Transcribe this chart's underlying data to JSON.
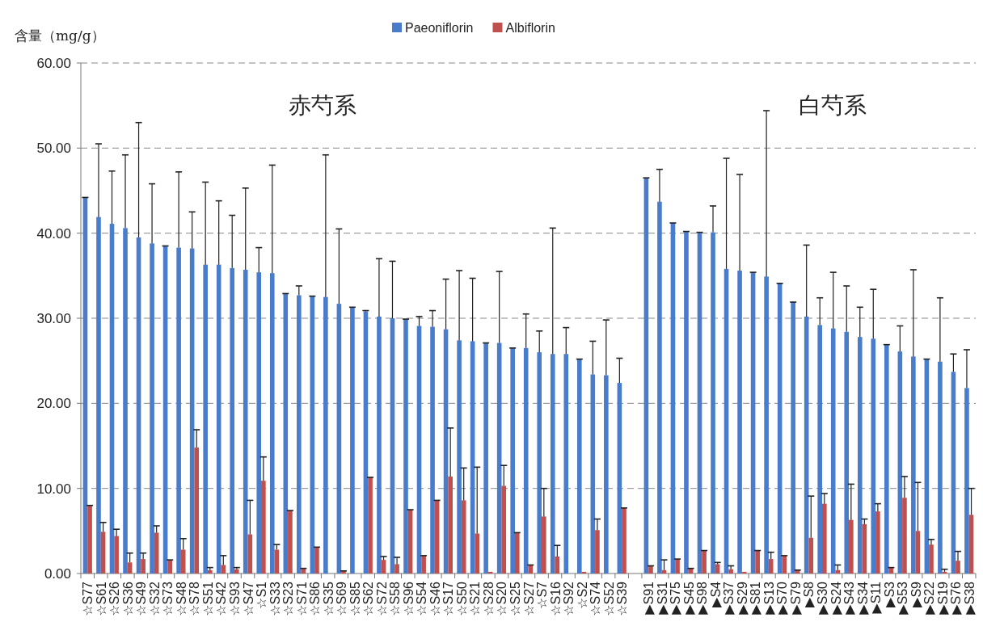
{
  "chart_data": {
    "type": "bar",
    "ylabel": "含量（mg/g）",
    "annotations": [
      "赤芍系",
      "白芍系"
    ],
    "categories": [
      "☆S77",
      "☆S61",
      "☆S26",
      "☆S36",
      "☆S49",
      "☆S32",
      "☆S73",
      "☆S48",
      "☆S78",
      "☆S51",
      "☆S42",
      "☆S93",
      "☆S47",
      "☆S1",
      "☆S33",
      "☆S23",
      "☆S71",
      "☆S86",
      "☆S35",
      "☆S69",
      "☆S85",
      "☆S62",
      "☆S72",
      "☆S58",
      "☆S96",
      "☆S54",
      "☆S46",
      "☆S17",
      "☆S50",
      "☆S21",
      "☆S28",
      "☆S20",
      "☆S25",
      "☆S27",
      "☆S7",
      "☆S16",
      "☆S92",
      "☆S2",
      "☆S74",
      "☆S52",
      "☆S39",
      null,
      "▶S91",
      "▶S31",
      "▶S75",
      "▶S45",
      "▶S98",
      "▶S4",
      "▶S37",
      "▶S29",
      "▶S81",
      "▶S13",
      "▶S70",
      "▶S79",
      "▶S8",
      "▶S30",
      "▶S24",
      "▶S43",
      "▶S34",
      "▶S11",
      "▶S3",
      "▶S53",
      "▶S9",
      "▶S22",
      "▶S19",
      "▶S76",
      "▶S38"
    ],
    "series": [
      {
        "name": "Paeoniflorin",
        "color": "#4a7ccc",
        "values": [
          44.2,
          41.9,
          41.1,
          40.6,
          39.5,
          38.8,
          38.5,
          38.3,
          38.2,
          36.3,
          36.3,
          35.9,
          35.7,
          35.4,
          35.3,
          32.9,
          32.7,
          32.6,
          32.5,
          31.7,
          31.3,
          30.8,
          30.2,
          30.0,
          29.9,
          29.1,
          29.0,
          28.7,
          27.4,
          27.3,
          27.1,
          27.1,
          26.5,
          26.5,
          26.0,
          25.8,
          25.8,
          25.2,
          23.4,
          23.3,
          22.4,
          null,
          46.5,
          43.7,
          41.2,
          40.2,
          40.1,
          40.1,
          35.8,
          35.6,
          35.4,
          34.9,
          34.1,
          31.9,
          30.2,
          29.2,
          28.8,
          28.4,
          27.8,
          27.6,
          26.9,
          26.1,
          25.5,
          25.2,
          24.9,
          23.7,
          21.8
        ],
        "errors": [
          [
            44.2,
            44.2
          ],
          [
            41.9,
            50.5
          ],
          [
            41.1,
            47.3
          ],
          [
            40.6,
            49.2
          ],
          [
            39.5,
            53.0
          ],
          [
            38.8,
            45.8
          ],
          [
            38.5,
            38.5
          ],
          [
            38.3,
            47.2
          ],
          [
            38.2,
            42.5
          ],
          [
            36.3,
            46.0
          ],
          [
            36.3,
            43.8
          ],
          [
            35.9,
            42.1
          ],
          [
            35.7,
            45.3
          ],
          [
            35.4,
            38.3
          ],
          [
            35.3,
            48.0
          ],
          [
            32.9,
            32.9
          ],
          [
            32.7,
            33.8
          ],
          [
            32.6,
            32.6
          ],
          [
            32.5,
            49.2
          ],
          [
            31.7,
            40.5
          ],
          [
            31.3,
            31.3
          ],
          [
            30.8,
            30.9
          ],
          [
            30.2,
            37.0
          ],
          [
            30.0,
            36.7
          ],
          [
            29.9,
            29.9
          ],
          [
            29.1,
            30.2
          ],
          [
            29.0,
            30.9
          ],
          [
            28.7,
            34.6
          ],
          [
            27.4,
            35.6
          ],
          [
            27.3,
            34.7
          ],
          [
            27.1,
            27.1
          ],
          [
            27.1,
            35.5
          ],
          [
            26.5,
            26.5
          ],
          [
            26.5,
            30.5
          ],
          [
            26.0,
            28.5
          ],
          [
            25.8,
            40.6
          ],
          [
            25.8,
            28.9
          ],
          [
            25.2,
            25.2
          ],
          [
            23.4,
            27.3
          ],
          [
            23.3,
            29.8
          ],
          [
            22.4,
            25.3
          ],
          null,
          [
            46.5,
            46.5
          ],
          [
            43.7,
            47.5
          ],
          [
            41.2,
            41.2
          ],
          [
            40.2,
            40.2
          ],
          [
            40.1,
            40.1
          ],
          [
            40.1,
            43.2
          ],
          [
            35.8,
            48.8
          ],
          [
            35.6,
            46.9
          ],
          [
            35.4,
            35.4
          ],
          [
            34.9,
            54.4
          ],
          [
            34.1,
            34.1
          ],
          [
            31.9,
            31.9
          ],
          [
            30.2,
            38.6
          ],
          [
            29.2,
            32.4
          ],
          [
            28.8,
            35.4
          ],
          [
            28.4,
            33.8
          ],
          [
            27.8,
            31.3
          ],
          [
            27.6,
            33.4
          ],
          [
            26.9,
            26.9
          ],
          [
            26.1,
            29.1
          ],
          [
            25.5,
            35.7
          ],
          [
            25.2,
            25.2
          ],
          [
            24.9,
            32.4
          ],
          [
            23.7,
            25.8
          ],
          [
            21.8,
            26.3
          ]
        ]
      },
      {
        "name": "Albiflorin",
        "color": "#c0504d",
        "values": [
          8.0,
          4.9,
          4.4,
          1.3,
          1.7,
          4.8,
          1.6,
          2.8,
          14.8,
          0.4,
          1.0,
          0.5,
          4.6,
          10.9,
          2.8,
          7.4,
          0.6,
          3.1,
          0.0,
          0.3,
          0.0,
          11.3,
          1.6,
          1.1,
          7.5,
          2.1,
          8.6,
          11.4,
          8.6,
          4.7,
          0.2,
          10.3,
          4.8,
          1.0,
          6.7,
          2.0,
          0.0,
          0.2,
          5.1,
          0.0,
          7.7,
          null,
          0.9,
          0.4,
          1.7,
          0.6,
          2.7,
          1.1,
          0.5,
          0.2,
          2.7,
          1.7,
          2.1,
          0.4,
          4.2,
          8.2,
          0.4,
          6.3,
          5.8,
          7.3,
          0.7,
          8.9,
          5.0,
          3.4,
          0.2,
          1.5,
          6.9
        ],
        "errors": [
          [
            8.0,
            8.0
          ],
          [
            4.9,
            6.0
          ],
          [
            4.4,
            5.2
          ],
          [
            1.3,
            2.4
          ],
          [
            1.7,
            2.4
          ],
          [
            4.8,
            5.6
          ],
          [
            1.6,
            1.6
          ],
          [
            2.8,
            4.1
          ],
          [
            14.8,
            16.9
          ],
          [
            0.4,
            0.7
          ],
          [
            1.0,
            2.1
          ],
          [
            0.5,
            0.7
          ],
          [
            4.6,
            8.6
          ],
          [
            10.9,
            13.7
          ],
          [
            2.8,
            3.4
          ],
          [
            7.4,
            7.4
          ],
          [
            0.6,
            0.6
          ],
          [
            3.1,
            3.1
          ],
          null,
          [
            0.3,
            0.3
          ],
          null,
          [
            11.3,
            11.3
          ],
          [
            1.6,
            2.0
          ],
          [
            1.1,
            1.9
          ],
          [
            7.5,
            7.5
          ],
          [
            2.1,
            2.1
          ],
          [
            8.6,
            8.6
          ],
          [
            11.4,
            17.1
          ],
          [
            8.6,
            12.4
          ],
          [
            4.7,
            12.5
          ],
          null,
          [
            10.3,
            12.7
          ],
          [
            4.8,
            4.8
          ],
          [
            1.0,
            1.0
          ],
          [
            6.7,
            10.0
          ],
          [
            2.0,
            3.3
          ],
          null,
          null,
          [
            5.1,
            6.4
          ],
          null,
          [
            7.7,
            7.7
          ],
          null,
          [
            0.9,
            0.9
          ],
          [
            0.4,
            1.6
          ],
          [
            1.7,
            1.7
          ],
          [
            0.6,
            0.6
          ],
          [
            2.7,
            2.7
          ],
          [
            1.1,
            1.3
          ],
          [
            0.5,
            0.9
          ],
          null,
          [
            2.7,
            2.7
          ],
          [
            1.7,
            2.5
          ],
          [
            2.1,
            2.1
          ],
          [
            0.4,
            0.4
          ],
          [
            4.2,
            9.1
          ],
          [
            8.2,
            9.4
          ],
          [
            0.4,
            1.0
          ],
          [
            6.3,
            10.5
          ],
          [
            5.8,
            6.4
          ],
          [
            7.3,
            8.2
          ],
          [
            0.7,
            0.7
          ],
          [
            8.9,
            11.4
          ],
          [
            5.0,
            10.7
          ],
          [
            3.4,
            4.0
          ],
          [
            0.2,
            0.5
          ],
          [
            1.5,
            2.6
          ],
          [
            6.9,
            10.0
          ]
        ]
      }
    ],
    "ylim": [
      0,
      60
    ],
    "yticks": [
      {
        "value": 0,
        "label": "0.00"
      },
      {
        "value": 10,
        "label": "10.00"
      },
      {
        "value": 20,
        "label": "20.00"
      },
      {
        "value": 30,
        "label": "30.00"
      },
      {
        "value": 40,
        "label": "40.00"
      },
      {
        "value": 50,
        "label": "50.00"
      },
      {
        "value": 60,
        "label": "60.00"
      }
    ],
    "grid": "y",
    "legend": "top"
  }
}
